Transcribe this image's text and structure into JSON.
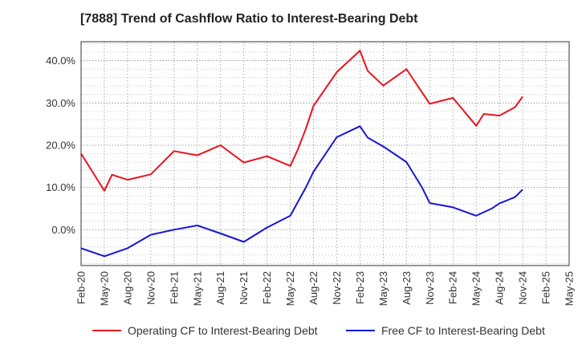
{
  "title": "[7888]  Trend of Cashflow Ratio to Interest-Bearing Debt",
  "chart_data": {
    "type": "line",
    "title": "[7888]  Trend of Cashflow Ratio to Interest-Bearing Debt",
    "xlabel": "",
    "ylabel": "",
    "x": [
      "Feb-20",
      "May-20",
      "Aug-20",
      "Nov-20",
      "Feb-21",
      "May-21",
      "Aug-21",
      "Nov-21",
      "Feb-22",
      "May-22",
      "Aug-22",
      "Nov-22",
      "Feb-23",
      "May-23",
      "Aug-23",
      "Nov-23",
      "Feb-24",
      "May-24",
      "Aug-24",
      "Nov-24",
      "Feb-25",
      "May-25"
    ],
    "y_ticks": [
      "0.0%",
      "10.0%",
      "20.0%",
      "30.0%",
      "40.0%"
    ],
    "y_tick_values": [
      0,
      10,
      20,
      30,
      40
    ],
    "ylim": [
      -8.5,
      44.5
    ],
    "grid": true,
    "legend_position": "bottom",
    "series": [
      {
        "name": "Operating CF to Interest-Bearing Debt",
        "color": "#e8141d",
        "values": [
          18.0,
          9.2,
          11.8,
          13.1,
          18.6,
          17.6,
          20.0,
          15.9,
          17.4,
          15.1,
          29.3,
          37.3,
          42.4,
          34.1,
          38.0,
          29.8,
          31.2,
          24.6,
          27.0,
          31.5,
          null,
          null
        ],
        "extra_points": [
          [
            1.33,
            13.0
          ],
          [
            9.33,
            19.0
          ],
          [
            9.67,
            23.9
          ],
          [
            12.33,
            37.6
          ],
          [
            17.33,
            27.4
          ],
          [
            18.67,
            29.0
          ]
        ]
      },
      {
        "name": "Free CF to Interest-Bearing Debt",
        "color": "#1515d8",
        "values": [
          -4.4,
          -6.3,
          -4.4,
          -1.2,
          0.0,
          1.0,
          -0.9,
          -2.9,
          0.5,
          3.3,
          13.7,
          21.9,
          24.5,
          19.7,
          16.0,
          6.3,
          5.3,
          3.3,
          6.2,
          9.5,
          null,
          null
        ],
        "extra_points": [
          [
            9.67,
            10.0
          ],
          [
            12.33,
            21.8
          ],
          [
            14.67,
            10.0
          ],
          [
            17.67,
            5.0
          ],
          [
            18.67,
            7.7
          ]
        ]
      }
    ]
  },
  "legend": {
    "operating_label": "Operating CF to Interest-Bearing Debt",
    "free_label": "Free CF to Interest-Bearing Debt"
  }
}
